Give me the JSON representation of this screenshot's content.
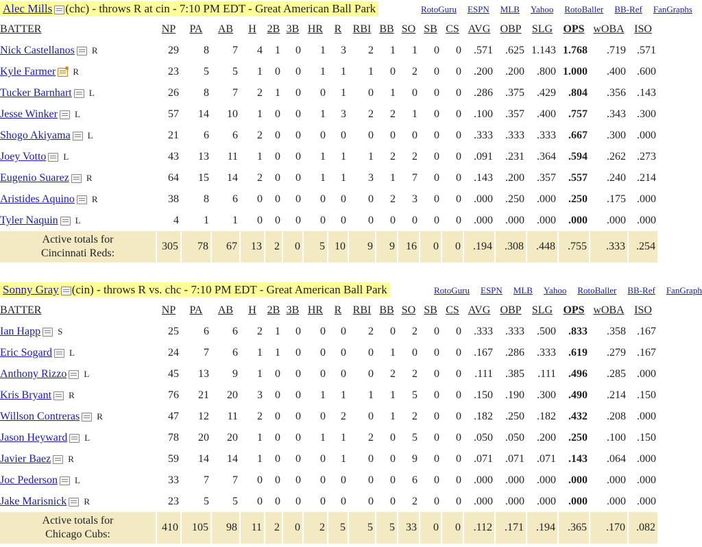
{
  "link_labels": [
    "RotoGuru",
    "ESPN",
    "MLB",
    "Yahoo",
    "RotoBaller",
    "BB-Ref",
    "FanGraphs"
  ],
  "columns": [
    "BATTER",
    "NP",
    "PA",
    "AB",
    "H",
    "2B",
    "3B",
    "HR",
    "R",
    "RBI",
    "BB",
    "SO",
    "SB",
    "CS",
    "AVG",
    "OBP",
    "SLG",
    "OPS",
    "wOBA",
    "ISO"
  ],
  "games": [
    {
      "pitcher": "Alec Mills",
      "header_text": "(chc) - throws R at cin - 7:10 PM EDT - Great American Ball Park",
      "batters": [
        {
          "name": "Nick Castellanos",
          "hand": "R",
          "note_alt": false,
          "stats": [
            "29",
            "8",
            "7",
            "4",
            "1",
            "0",
            "1",
            "3",
            "2",
            "1",
            "1",
            "0",
            "0",
            ".571",
            ".625",
            "1.143",
            "1.768",
            ".719",
            ".571"
          ]
        },
        {
          "name": "Kyle Farmer",
          "hand": "R",
          "note_alt": true,
          "stats": [
            "23",
            "5",
            "5",
            "1",
            "0",
            "0",
            "1",
            "1",
            "1",
            "0",
            "2",
            "0",
            "0",
            ".200",
            ".200",
            ".800",
            "1.000",
            ".400",
            ".600"
          ]
        },
        {
          "name": "Tucker Barnhart",
          "hand": "L",
          "note_alt": false,
          "stats": [
            "26",
            "8",
            "7",
            "2",
            "1",
            "0",
            "0",
            "1",
            "0",
            "1",
            "0",
            "0",
            "0",
            ".286",
            ".375",
            ".429",
            ".804",
            ".356",
            ".143"
          ]
        },
        {
          "name": "Jesse Winker",
          "hand": "L",
          "note_alt": false,
          "stats": [
            "57",
            "14",
            "10",
            "1",
            "0",
            "0",
            "1",
            "3",
            "2",
            "2",
            "1",
            "0",
            "0",
            ".100",
            ".357",
            ".400",
            ".757",
            ".343",
            ".300"
          ]
        },
        {
          "name": "Shogo Akiyama",
          "hand": "L",
          "note_alt": false,
          "stats": [
            "21",
            "6",
            "6",
            "2",
            "0",
            "0",
            "0",
            "0",
            "0",
            "0",
            "0",
            "0",
            "0",
            ".333",
            ".333",
            ".333",
            ".667",
            ".300",
            ".000"
          ]
        },
        {
          "name": "Joey Votto",
          "hand": "L",
          "note_alt": false,
          "stats": [
            "43",
            "13",
            "11",
            "1",
            "0",
            "0",
            "1",
            "1",
            "1",
            "2",
            "2",
            "0",
            "0",
            ".091",
            ".231",
            ".364",
            ".594",
            ".262",
            ".273"
          ]
        },
        {
          "name": "Eugenio Suarez",
          "hand": "R",
          "note_alt": false,
          "stats": [
            "64",
            "15",
            "14",
            "2",
            "0",
            "0",
            "1",
            "1",
            "3",
            "1",
            "7",
            "0",
            "0",
            ".143",
            ".200",
            ".357",
            ".557",
            ".240",
            ".214"
          ]
        },
        {
          "name": "Aristides Aquino",
          "hand": "R",
          "note_alt": false,
          "stats": [
            "38",
            "8",
            "6",
            "0",
            "0",
            "0",
            "0",
            "0",
            "0",
            "2",
            "3",
            "0",
            "0",
            ".000",
            ".250",
            ".000",
            ".250",
            ".175",
            ".000"
          ]
        },
        {
          "name": "Tyler Naquin",
          "hand": "L",
          "note_alt": false,
          "stats": [
            "4",
            "1",
            "1",
            "0",
            "0",
            "0",
            "0",
            "0",
            "0",
            "0",
            "0",
            "0",
            "0",
            ".000",
            ".000",
            ".000",
            ".000",
            ".000",
            ".000"
          ]
        }
      ],
      "totals_label_1": "Active totals for",
      "totals_label_2": "Cincinnati Reds:",
      "totals": [
        "305",
        "78",
        "67",
        "13",
        "2",
        "0",
        "5",
        "10",
        "9",
        "9",
        "16",
        "0",
        "0",
        ".194",
        ".308",
        ".448",
        ".755",
        ".333",
        ".254"
      ]
    },
    {
      "pitcher": "Sonny Gray",
      "header_text": "(cin) - throws R vs. chc - 7:10 PM EDT - Great American Ball Park",
      "batters": [
        {
          "name": "Ian Happ",
          "hand": "S",
          "note_alt": false,
          "stats": [
            "25",
            "6",
            "6",
            "2",
            "1",
            "0",
            "0",
            "0",
            "2",
            "0",
            "2",
            "0",
            "0",
            ".333",
            ".333",
            ".500",
            ".833",
            ".358",
            ".167"
          ]
        },
        {
          "name": "Eric Sogard",
          "hand": "L",
          "note_alt": false,
          "stats": [
            "24",
            "7",
            "6",
            "1",
            "1",
            "0",
            "0",
            "0",
            "0",
            "1",
            "0",
            "0",
            "0",
            ".167",
            ".286",
            ".333",
            ".619",
            ".279",
            ".167"
          ]
        },
        {
          "name": "Anthony Rizzo",
          "hand": "L",
          "note_alt": false,
          "stats": [
            "45",
            "13",
            "9",
            "1",
            "0",
            "0",
            "0",
            "0",
            "0",
            "2",
            "2",
            "0",
            "0",
            ".111",
            ".385",
            ".111",
            ".496",
            ".285",
            ".000"
          ]
        },
        {
          "name": "Kris Bryant",
          "hand": "R",
          "note_alt": false,
          "stats": [
            "76",
            "21",
            "20",
            "3",
            "0",
            "0",
            "1",
            "1",
            "1",
            "1",
            "5",
            "0",
            "0",
            ".150",
            ".190",
            ".300",
            ".490",
            ".214",
            ".150"
          ]
        },
        {
          "name": "Willson Contreras",
          "hand": "R",
          "note_alt": false,
          "stats": [
            "47",
            "12",
            "11",
            "2",
            "0",
            "0",
            "0",
            "2",
            "0",
            "1",
            "2",
            "0",
            "0",
            ".182",
            ".250",
            ".182",
            ".432",
            ".208",
            ".000"
          ]
        },
        {
          "name": "Jason Heyward",
          "hand": "L",
          "note_alt": false,
          "stats": [
            "78",
            "20",
            "20",
            "1",
            "0",
            "0",
            "1",
            "1",
            "2",
            "0",
            "5",
            "0",
            "0",
            ".050",
            ".050",
            ".200",
            ".250",
            ".100",
            ".150"
          ]
        },
        {
          "name": "Javier Baez",
          "hand": "R",
          "note_alt": false,
          "stats": [
            "59",
            "14",
            "14",
            "1",
            "0",
            "0",
            "0",
            "1",
            "0",
            "0",
            "9",
            "0",
            "0",
            ".071",
            ".071",
            ".071",
            ".143",
            ".064",
            ".000"
          ]
        },
        {
          "name": "Joc Pederson",
          "hand": "L",
          "note_alt": false,
          "stats": [
            "33",
            "7",
            "7",
            "0",
            "0",
            "0",
            "0",
            "0",
            "0",
            "0",
            "6",
            "0",
            "0",
            ".000",
            ".000",
            ".000",
            ".000",
            ".000",
            ".000"
          ]
        },
        {
          "name": "Jake Marisnick",
          "hand": "R",
          "note_alt": false,
          "stats": [
            "23",
            "5",
            "5",
            "0",
            "0",
            "0",
            "0",
            "0",
            "0",
            "0",
            "2",
            "0",
            "0",
            ".000",
            ".000",
            ".000",
            ".000",
            ".000",
            ".000"
          ]
        }
      ],
      "totals_label_1": "Active totals for",
      "totals_label_2": "Chicago Cubs:",
      "totals": [
        "410",
        "105",
        "98",
        "11",
        "2",
        "0",
        "2",
        "5",
        "5",
        "5",
        "33",
        "0",
        "0",
        ".112",
        ".171",
        ".194",
        ".365",
        ".170",
        ".082"
      ]
    }
  ]
}
